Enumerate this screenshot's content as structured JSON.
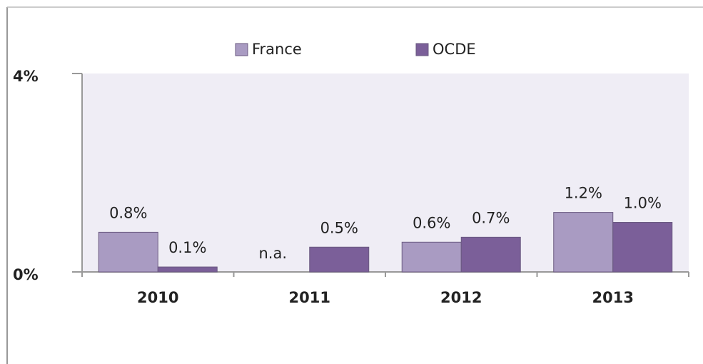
{
  "chart_data": {
    "type": "bar",
    "categories": [
      "2010",
      "2011",
      "2012",
      "2013"
    ],
    "series": [
      {
        "name": "France",
        "color": "#a99bc2",
        "values": [
          0.8,
          null,
          0.6,
          1.2
        ],
        "value_labels": [
          "0.8%",
          "n.a.",
          "0.6%",
          "1.2%"
        ]
      },
      {
        "name": "OCDE",
        "color": "#7b5f99",
        "values": [
          0.1,
          0.5,
          0.7,
          1.0
        ],
        "value_labels": [
          "0.1%",
          "0.5%",
          "0.7%",
          "1.0%"
        ]
      }
    ],
    "ylim": [
      0,
      4
    ],
    "yticks": [
      {
        "value": 0,
        "label": "0%"
      },
      {
        "value": 4,
        "label": "4%"
      }
    ],
    "legend": "top"
  }
}
